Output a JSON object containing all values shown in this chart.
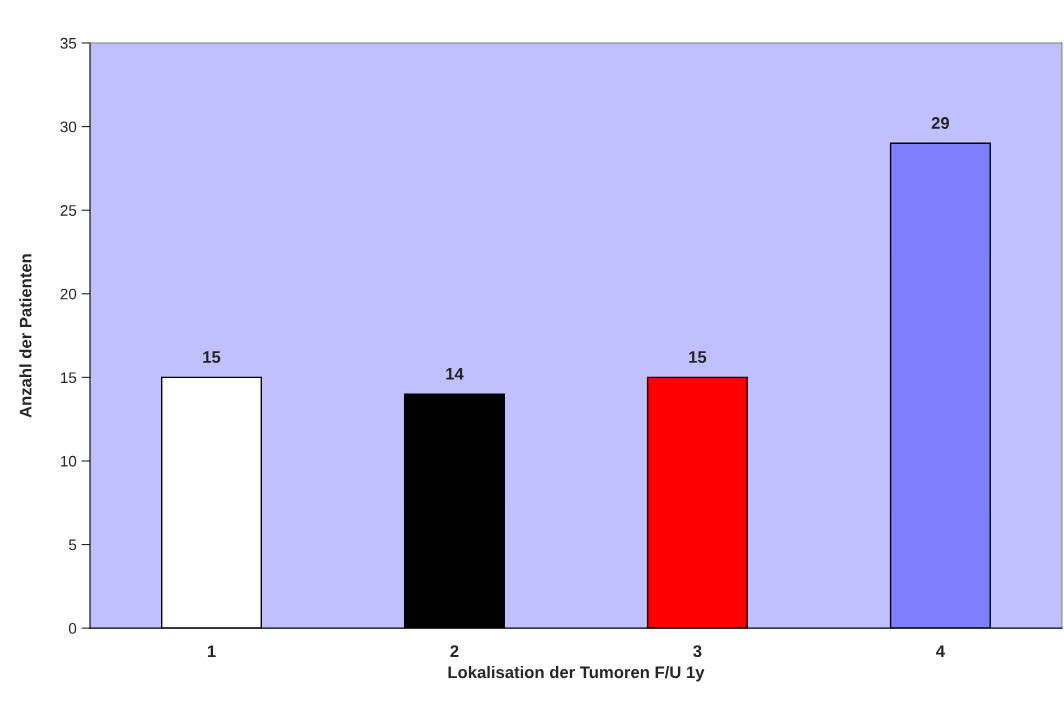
{
  "chart_data": {
    "type": "bar",
    "xlabel": "Lokalisation der Tumoren F/U 1y",
    "ylabel": "Anzahl der Patienten",
    "categories": [
      "1",
      "2",
      "3",
      "4"
    ],
    "values": [
      15,
      14,
      15,
      29
    ],
    "colors": [
      "#ffffff",
      "#000000",
      "#ff0000",
      "#8080ff"
    ],
    "ylim": [
      0,
      35
    ],
    "yticks": [
      0,
      5,
      10,
      15,
      20,
      25,
      30,
      35
    ],
    "grid": false,
    "legend": false,
    "data_labels": true
  }
}
